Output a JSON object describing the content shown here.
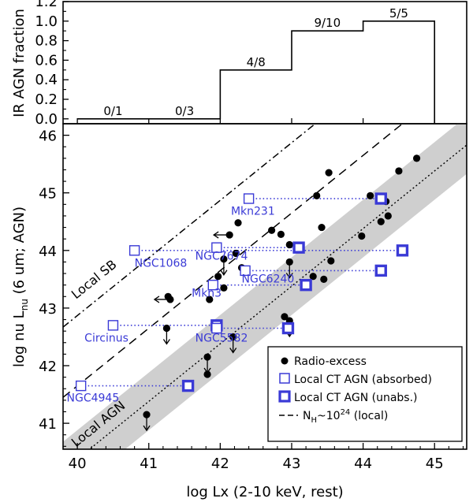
{
  "chart_data": [
    {
      "type": "line",
      "title": "",
      "ylabel": "IR AGN fraction",
      "xlim": [
        39.8,
        45.45
      ],
      "ylim": [
        -0.05,
        1.2
      ],
      "yticks": [
        "0.0",
        "0.2",
        "0.4",
        "0.6",
        "0.8",
        "1.0",
        "1.2"
      ],
      "step_bins": [
        {
          "x0": 40.0,
          "x1": 41.0,
          "fraction": 0.0,
          "label": "0/1"
        },
        {
          "x0": 41.0,
          "x1": 42.0,
          "fraction": 0.0,
          "label": "0/3"
        },
        {
          "x0": 42.0,
          "x1": 43.0,
          "fraction": 0.5,
          "label": "4/8"
        },
        {
          "x0": 43.0,
          "x1": 44.0,
          "fraction": 0.9,
          "label": "9/10"
        },
        {
          "x0": 44.0,
          "x1": 45.0,
          "fraction": 1.0,
          "label": "5/5"
        }
      ]
    },
    {
      "type": "scatter",
      "xlabel": "log Lx (2-10 keV, rest)",
      "ylabel": "log nu L",
      "ylabel_sub": "nu",
      "ylabel_tail": " (6 um; AGN)",
      "xlim": [
        39.8,
        45.45
      ],
      "ylim": [
        40.55,
        46.2
      ],
      "xticks": [
        "40",
        "41",
        "42",
        "43",
        "44",
        "45"
      ],
      "yticks": [
        "41",
        "42",
        "43",
        "44",
        "45",
        "46"
      ],
      "region_labels": {
        "sb": "Local SB",
        "agn": "Local AGN"
      },
      "relations": {
        "local_sb": {
          "points": [
            [
              39.8,
              42.67
            ],
            [
              45.45,
              48.32
            ]
          ]
        },
        "nh_1e24": {
          "points": [
            [
              39.8,
              41.45
            ],
            [
              45.45,
              47.1
            ]
          ]
        },
        "local_agn": {
          "points": [
            [
              39.8,
              40.18
            ],
            [
              45.45,
              45.83
            ]
          ]
        },
        "local_agn_band_halfwidth": 0.5
      },
      "radio_excess": [
        {
          "x": 40.97,
          "y": 41.15,
          "upper": true
        },
        {
          "x": 41.25,
          "y": 42.65,
          "upper": true
        },
        {
          "x": 41.82,
          "y": 42.15,
          "upper": true
        },
        {
          "x": 41.82,
          "y": 41.85
        },
        {
          "x": 41.27,
          "y": 43.2
        },
        {
          "x": 41.3,
          "y": 43.15,
          "left": true
        },
        {
          "x": 41.85,
          "y": 43.15
        },
        {
          "x": 41.97,
          "y": 43.55
        },
        {
          "x": 42.05,
          "y": 43.35
        },
        {
          "x": 42.05,
          "y": 43.85,
          "upper": true
        },
        {
          "x": 42.13,
          "y": 44.27,
          "left": true
        },
        {
          "x": 42.25,
          "y": 44.48
        },
        {
          "x": 42.22,
          "y": 43.95
        },
        {
          "x": 42.3,
          "y": 43.7
        },
        {
          "x": 42.18,
          "y": 42.5,
          "upper": true
        },
        {
          "x": 42.72,
          "y": 44.35
        },
        {
          "x": 42.85,
          "y": 44.28
        },
        {
          "x": 42.9,
          "y": 42.85
        },
        {
          "x": 42.97,
          "y": 42.78,
          "upper": true
        },
        {
          "x": 42.97,
          "y": 44.1
        },
        {
          "x": 42.97,
          "y": 43.8,
          "upper": true
        },
        {
          "x": 43.3,
          "y": 43.55
        },
        {
          "x": 43.35,
          "y": 44.95
        },
        {
          "x": 43.42,
          "y": 44.4
        },
        {
          "x": 43.45,
          "y": 43.5
        },
        {
          "x": 43.52,
          "y": 45.35
        },
        {
          "x": 43.55,
          "y": 43.82
        },
        {
          "x": 43.98,
          "y": 44.25
        },
        {
          "x": 44.1,
          "y": 44.95
        },
        {
          "x": 44.25,
          "y": 44.5
        },
        {
          "x": 44.35,
          "y": 44.6
        },
        {
          "x": 44.32,
          "y": 44.85
        },
        {
          "x": 44.5,
          "y": 45.38
        },
        {
          "x": 44.75,
          "y": 45.6
        }
      ],
      "ct_agn": [
        {
          "name": "Mkn231",
          "absorbed": 42.4,
          "unabsorbed": 44.25,
          "y": 44.9
        },
        {
          "name": "NGC1068",
          "absorbed": 40.8,
          "unabsorbed": 44.55,
          "y": 44.0
        },
        {
          "name": "NGC7674",
          "absorbed": 41.95,
          "unabsorbed": 43.1,
          "y": 44.05
        },
        {
          "name": "NGC6240",
          "absorbed": 42.35,
          "unabsorbed": 44.25,
          "y": 43.65
        },
        {
          "name": "Mkn3",
          "absorbed": 41.9,
          "unabsorbed": 43.2,
          "y": 43.4
        },
        {
          "name": "Circinus",
          "absorbed": 40.5,
          "unabsorbed": 41.95,
          "y": 42.7
        },
        {
          "name": "NGC5582",
          "absorbed": 41.95,
          "unabsorbed": 42.95,
          "y": 42.65
        },
        {
          "name": "NGC4945",
          "absorbed": 40.05,
          "unabsorbed": 41.55,
          "y": 41.65
        }
      ],
      "legend": {
        "entries": [
          "Radio-excess",
          "Local CT AGN (absorbed)",
          "Local CT AGN (unabs.)",
          "N",
          "H",
          "~10",
          "24",
          " (local)"
        ],
        "placement": "bottom-right"
      }
    }
  ]
}
